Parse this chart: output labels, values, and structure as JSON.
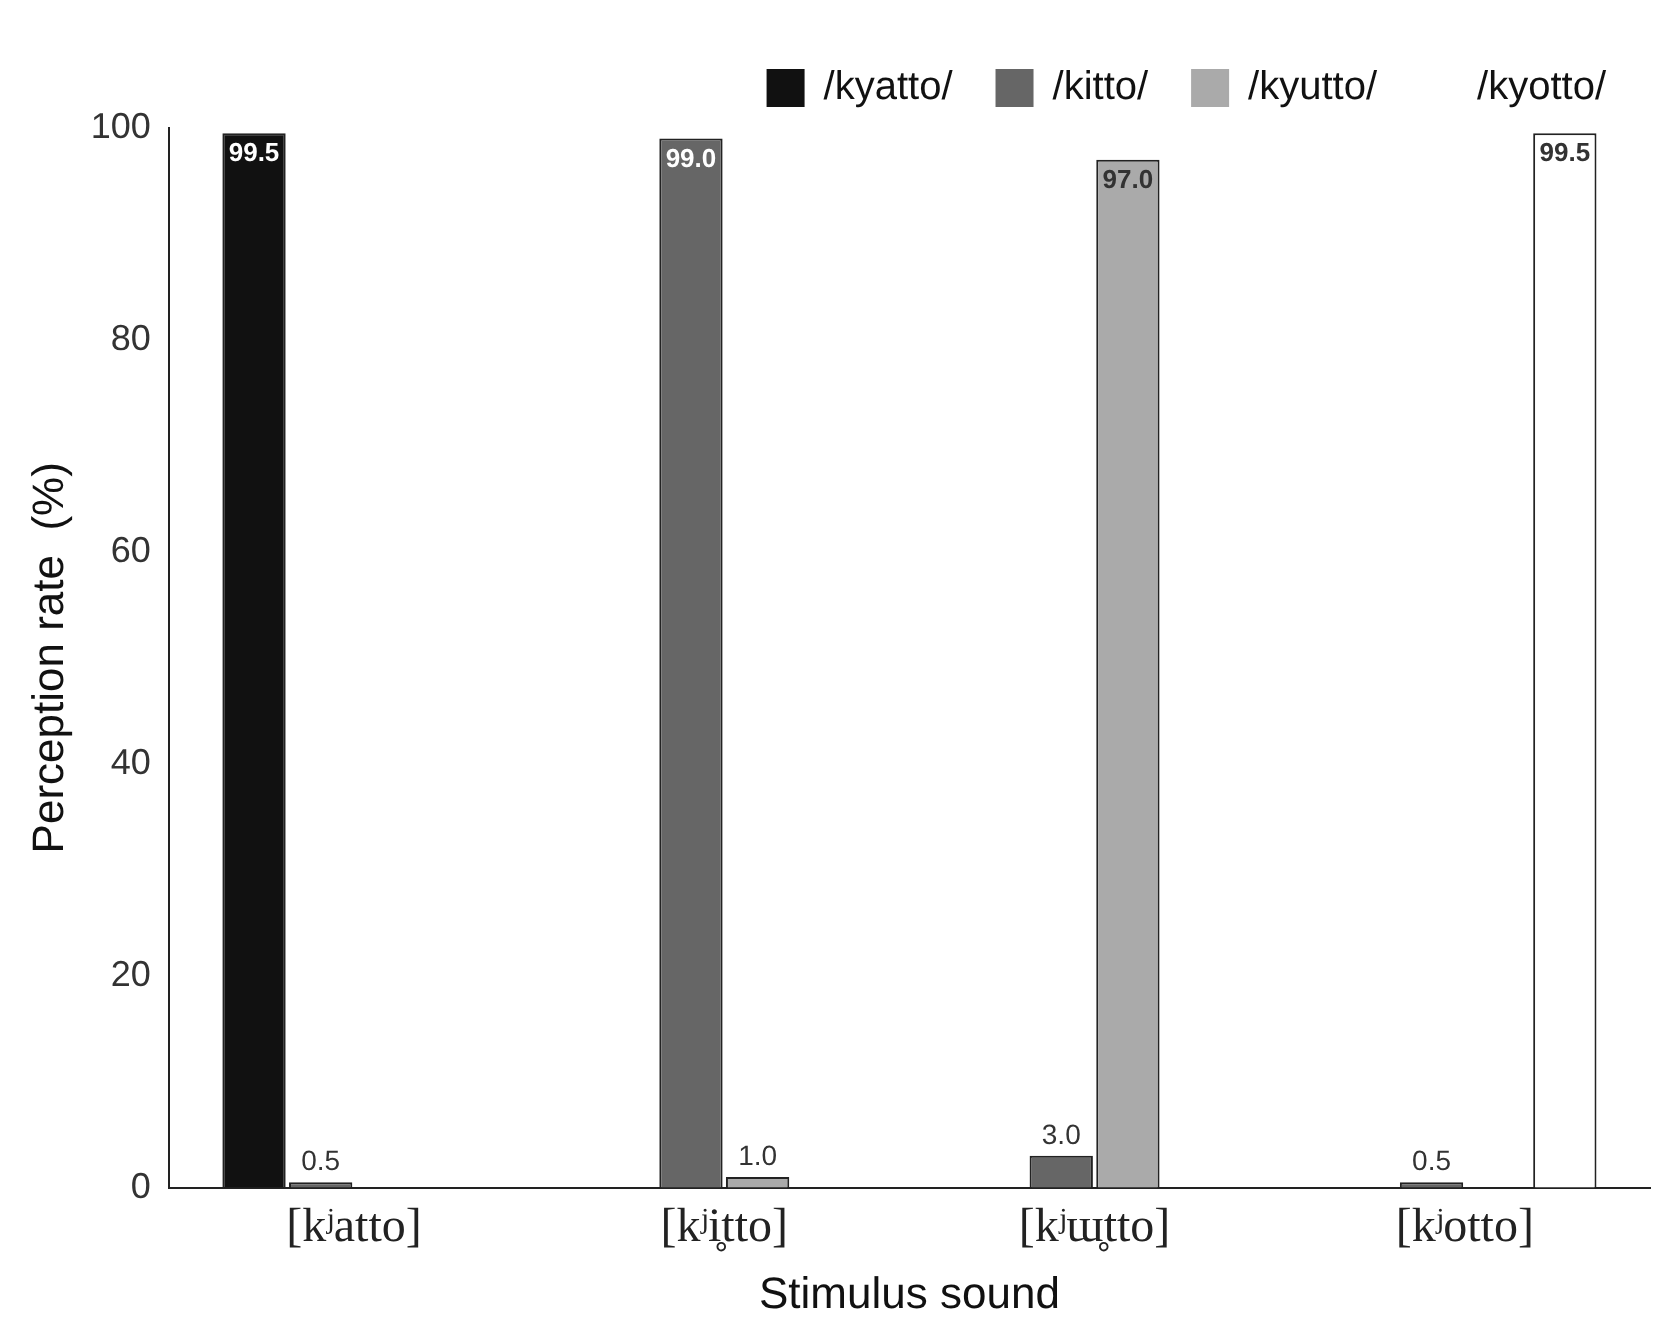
{
  "chart_data": {
    "type": "bar",
    "xlabel": "Stimulus sound",
    "ylabel": "Perception rate  (%)",
    "categories": [
      "[kʲatto]",
      "[kʲi̥tto]",
      "[kʲɯ̥tto]",
      "[kʲotto]"
    ],
    "series": [
      {
        "name": "/kyatto/",
        "color": "#111111",
        "values": [
          99.5,
          0,
          0,
          0
        ],
        "value_labels": [
          "99.5",
          null,
          null,
          null
        ]
      },
      {
        "name": "/kitto/",
        "color": "#666666",
        "values": [
          0.5,
          99.0,
          3.0,
          0.5
        ],
        "value_labels": [
          "0.5",
          "99.0",
          "3.0",
          "0.5"
        ]
      },
      {
        "name": "/kyutto/",
        "color": "#aaaaaa",
        "values": [
          0,
          1.0,
          97.0,
          0
        ],
        "value_labels": [
          null,
          "1.0",
          "97.0",
          null
        ]
      },
      {
        "name": "/kyotto/",
        "color": "#ffffff",
        "values": [
          0,
          0,
          0,
          99.5
        ],
        "value_labels": [
          null,
          null,
          null,
          "99.5"
        ]
      }
    ],
    "ylim": [
      0,
      100
    ],
    "yticks": [
      0,
      20,
      40,
      60,
      80,
      100
    ],
    "grid": false,
    "legend": "top"
  }
}
